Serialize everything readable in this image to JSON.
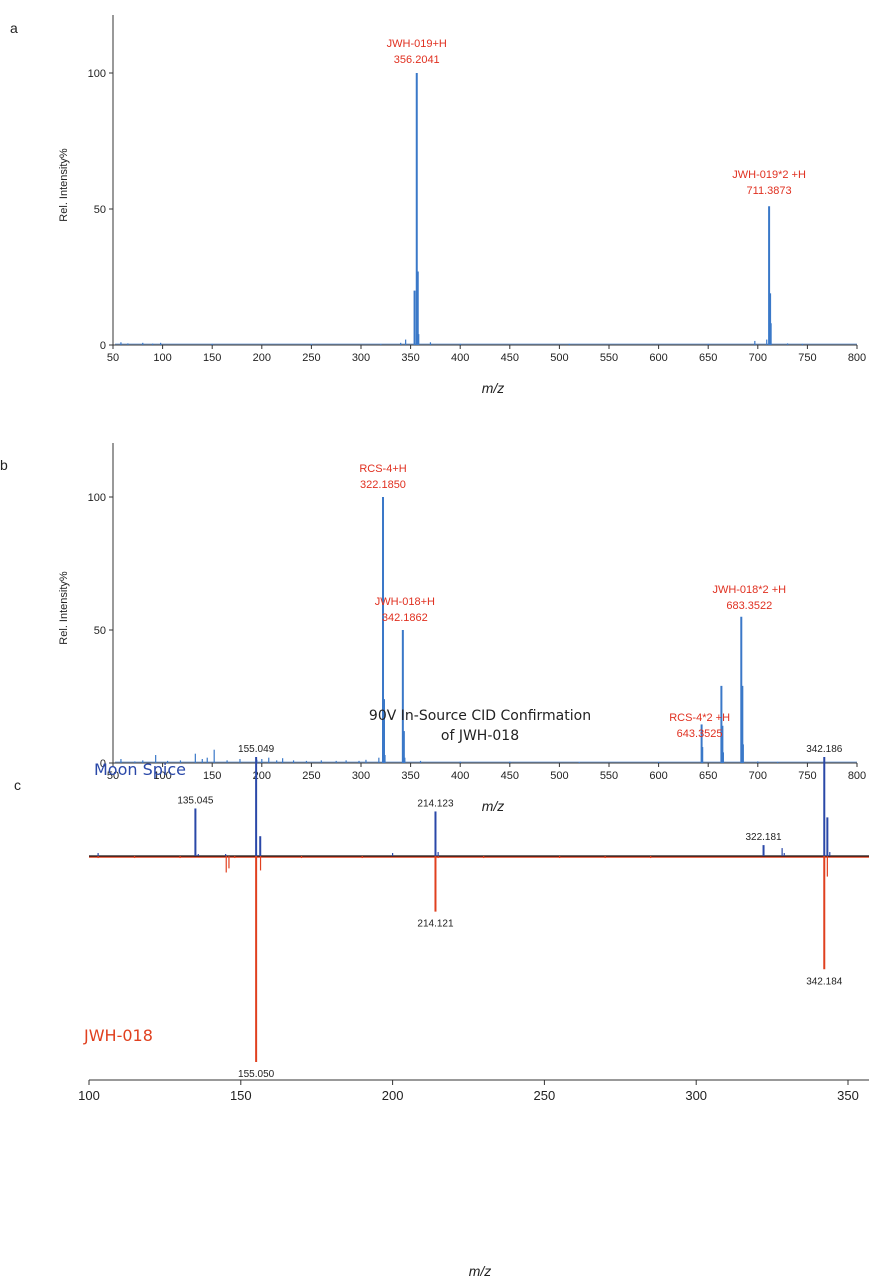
{
  "chart_data": [
    {
      "panel": "a",
      "type": "line",
      "ylabel": "Rel. Intensity%",
      "xlabel": "m/z",
      "xlim": [
        50,
        800
      ],
      "ylim": [
        0,
        120
      ],
      "xticks": [
        "50",
        "100",
        "150",
        "200",
        "250",
        "300",
        "350",
        "400",
        "450",
        "500",
        "550",
        "600",
        "650",
        "700",
        "750",
        "800"
      ],
      "yticks": [
        "0",
        "50",
        "100"
      ],
      "color": "#3a78c8",
      "peaks": [
        {
          "x": 58,
          "y": 1
        },
        {
          "x": 65,
          "y": 0.6
        },
        {
          "x": 80,
          "y": 0.8
        },
        {
          "x": 90,
          "y": 0.5
        },
        {
          "x": 98,
          "y": 0.8
        },
        {
          "x": 150,
          "y": 0.4
        },
        {
          "x": 250,
          "y": 0.3
        },
        {
          "x": 320,
          "y": 0.3
        },
        {
          "x": 340,
          "y": 0.8
        },
        {
          "x": 345,
          "y": 2
        },
        {
          "x": 354,
          "y": 20
        },
        {
          "x": 356.2041,
          "y": 100
        },
        {
          "x": 357.2,
          "y": 27
        },
        {
          "x": 358.2,
          "y": 4
        },
        {
          "x": 370,
          "y": 1
        },
        {
          "x": 400,
          "y": 0.4
        },
        {
          "x": 510,
          "y": 0.4
        },
        {
          "x": 650,
          "y": 0.4
        },
        {
          "x": 697,
          "y": 1.5
        },
        {
          "x": 709,
          "y": 2
        },
        {
          "x": 711.3873,
          "y": 51
        },
        {
          "x": 712.4,
          "y": 19
        },
        {
          "x": 713.4,
          "y": 8
        },
        {
          "x": 730,
          "y": 0.6
        },
        {
          "x": 745,
          "y": 0.4
        }
      ],
      "annotations": [
        {
          "lines": [
            "JWH-019+H",
            "356.2041"
          ],
          "x": 356.2041,
          "y": 100
        },
        {
          "lines": [
            "JWH-019*2 +H",
            "711.3873"
          ],
          "x": 711.3873,
          "y": 51
        }
      ]
    },
    {
      "panel": "b",
      "type": "line",
      "ylabel": "Rel. Intensity%",
      "xlabel": "m/z",
      "xlim": [
        50,
        800
      ],
      "ylim": [
        0,
        120
      ],
      "xticks": [
        "50",
        "100",
        "150",
        "200",
        "250",
        "300",
        "350",
        "400",
        "450",
        "500",
        "550",
        "600",
        "650",
        "700",
        "750",
        "800"
      ],
      "yticks": [
        "0",
        "50",
        "100"
      ],
      "color": "#3a78c8",
      "peaks": [
        {
          "x": 58,
          "y": 1.5
        },
        {
          "x": 72,
          "y": 0.6
        },
        {
          "x": 80,
          "y": 1
        },
        {
          "x": 93,
          "y": 3
        },
        {
          "x": 105,
          "y": 0.8
        },
        {
          "x": 118,
          "y": 1
        },
        {
          "x": 133,
          "y": 3.5
        },
        {
          "x": 140,
          "y": 1.5
        },
        {
          "x": 145,
          "y": 2
        },
        {
          "x": 152,
          "y": 5
        },
        {
          "x": 165,
          "y": 1
        },
        {
          "x": 178,
          "y": 1.5
        },
        {
          "x": 195,
          "y": 1.2
        },
        {
          "x": 200,
          "y": 1.5
        },
        {
          "x": 207,
          "y": 2
        },
        {
          "x": 215,
          "y": 1
        },
        {
          "x": 221,
          "y": 1.8
        },
        {
          "x": 232,
          "y": 1
        },
        {
          "x": 245,
          "y": 0.8
        },
        {
          "x": 260,
          "y": 1
        },
        {
          "x": 275,
          "y": 0.8
        },
        {
          "x": 285,
          "y": 1
        },
        {
          "x": 298,
          "y": 0.8
        },
        {
          "x": 305,
          "y": 1.2
        },
        {
          "x": 318,
          "y": 2
        },
        {
          "x": 322.185,
          "y": 100
        },
        {
          "x": 323.2,
          "y": 24
        },
        {
          "x": 324.2,
          "y": 3
        },
        {
          "x": 342.1862,
          "y": 50
        },
        {
          "x": 343.2,
          "y": 12
        },
        {
          "x": 344.2,
          "y": 2
        },
        {
          "x": 360,
          "y": 0.8
        },
        {
          "x": 400,
          "y": 0.5
        },
        {
          "x": 450,
          "y": 0.5
        },
        {
          "x": 520,
          "y": 0.3
        },
        {
          "x": 600,
          "y": 0.4
        },
        {
          "x": 643.3525,
          "y": 14.5
        },
        {
          "x": 644.4,
          "y": 6
        },
        {
          "x": 663.3,
          "y": 29
        },
        {
          "x": 664.3,
          "y": 14
        },
        {
          "x": 665.3,
          "y": 4
        },
        {
          "x": 683.3522,
          "y": 55
        },
        {
          "x": 684.4,
          "y": 29
        },
        {
          "x": 685.4,
          "y": 7
        },
        {
          "x": 700,
          "y": 0.6
        },
        {
          "x": 720,
          "y": 0.4
        }
      ],
      "annotations": [
        {
          "lines": [
            "RCS-4+H",
            "322.1850"
          ],
          "x": 322.185,
          "y": 100
        },
        {
          "lines": [
            "JWH-018+H",
            "342.1862"
          ],
          "x": 342.1862,
          "y": 50
        },
        {
          "lines": [
            "JWH-018*2 +H",
            "683.3522"
          ],
          "x": 683.3522,
          "y": 55
        },
        {
          "lines": [
            "RCS-4*2 +H",
            "643.3525"
          ],
          "x": 643.3525,
          "y": 14.5
        }
      ]
    },
    {
      "panel": "c",
      "type": "line",
      "title_lines": [
        "90V In-Source CID Confirmation",
        "of JWH-018"
      ],
      "xlabel": "m/z",
      "xlim": [
        100,
        356
      ],
      "xticks": [
        "100",
        "150",
        "200",
        "250",
        "300",
        "350"
      ],
      "series": [
        {
          "name": "Moon Spice",
          "color": "#2a48a8",
          "peaks": [
            {
              "x": 103,
              "y": 3
            },
            {
              "x": 135.045,
              "y": 48
            },
            {
              "x": 136,
              "y": 2
            },
            {
              "x": 145,
              "y": 2
            },
            {
              "x": 155.049,
              "y": 100
            },
            {
              "x": 156.4,
              "y": 20
            },
            {
              "x": 200,
              "y": 3
            },
            {
              "x": 214.123,
              "y": 45
            },
            {
              "x": 215,
              "y": 4
            },
            {
              "x": 322.181,
              "y": 11
            },
            {
              "x": 328.3,
              "y": 8
            },
            {
              "x": 329,
              "y": 3
            },
            {
              "x": 342.186,
              "y": 100
            },
            {
              "x": 343.2,
              "y": 39
            },
            {
              "x": 344,
              "y": 4
            }
          ],
          "labels": [
            {
              "text": "135.045",
              "x": 135.045,
              "y": 48
            },
            {
              "text": "155.049",
              "x": 155.049,
              "y": 100
            },
            {
              "text": "214.123",
              "x": 214.123,
              "y": 45
            },
            {
              "text": "322.181",
              "x": 322.181,
              "y": 11
            },
            {
              "text": "342.186",
              "x": 342.186,
              "y": 100
            }
          ]
        },
        {
          "name": "JWH-018",
          "color": "#e0401f",
          "peaks": [
            {
              "x": 103,
              "y": -1
            },
            {
              "x": 115,
              "y": -1
            },
            {
              "x": 130,
              "y": -1
            },
            {
              "x": 145.2,
              "y": -8
            },
            {
              "x": 146.1,
              "y": -6
            },
            {
              "x": 148,
              "y": -1
            },
            {
              "x": 155.05,
              "y": -100
            },
            {
              "x": 156.5,
              "y": -7
            },
            {
              "x": 170,
              "y": -1
            },
            {
              "x": 190,
              "y": -1
            },
            {
              "x": 214.121,
              "y": -27
            },
            {
              "x": 215,
              "y": -1
            },
            {
              "x": 230,
              "y": -1
            },
            {
              "x": 255,
              "y": -1
            },
            {
              "x": 270,
              "y": -1
            },
            {
              "x": 285,
              "y": -1
            },
            {
              "x": 342.184,
              "y": -55
            },
            {
              "x": 343.2,
              "y": -10
            }
          ],
          "labels": [
            {
              "text": "155.050",
              "x": 155.05,
              "y": -100
            },
            {
              "text": "214.121",
              "x": 214.121,
              "y": -27
            },
            {
              "text": "342.184",
              "x": 342.184,
              "y": -55
            }
          ]
        }
      ]
    }
  ]
}
